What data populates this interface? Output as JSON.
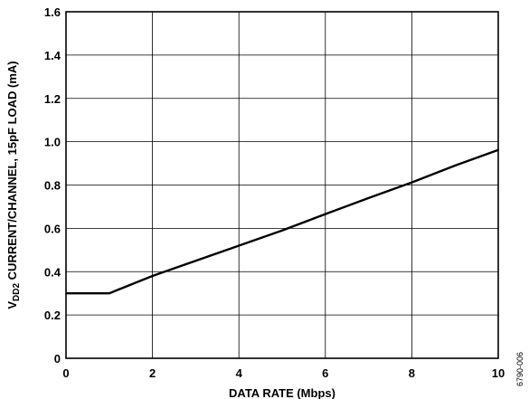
{
  "chart_data": {
    "type": "line",
    "xlabel": "DATA RATE (Mbps)",
    "ylabel": {
      "prefix": "V",
      "subscript": "DD2",
      "rest": " CURRENT/CHANNEL, 15pF LOAD (mA)"
    },
    "xlim": [
      0,
      10
    ],
    "ylim": [
      0,
      1.6
    ],
    "xticks": [
      "0",
      "2",
      "4",
      "6",
      "8",
      "10"
    ],
    "yticks": [
      "0",
      "0.2",
      "0.4",
      "0.6",
      "0.8",
      "1.0",
      "1.2",
      "1.4",
      "1.6"
    ],
    "grid": true,
    "series": [
      {
        "x": [
          0,
          1,
          2,
          3,
          4,
          5,
          6,
          7,
          8,
          9,
          10
        ],
        "y": [
          0.3,
          0.3,
          0.38,
          0.45,
          0.52,
          0.59,
          0.666,
          0.74,
          0.812,
          0.89,
          0.962
        ]
      }
    ],
    "figure_id": "6790-006"
  }
}
